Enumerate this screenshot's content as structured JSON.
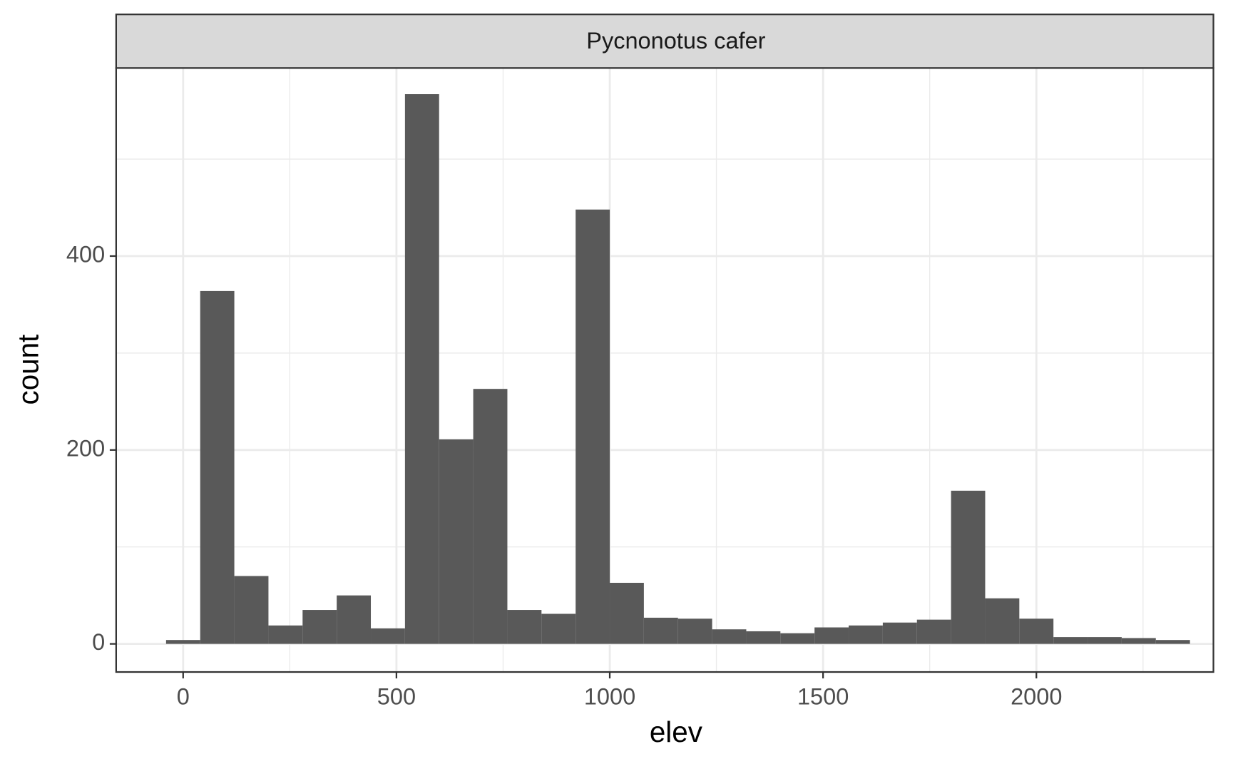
{
  "chart_data": {
    "type": "histogram",
    "title": "Pycnonotus cafer",
    "x_label": "elev",
    "y_label": "count",
    "bins": [
      -40,
      40,
      120,
      200,
      280,
      360,
      440,
      520,
      600,
      680,
      760,
      840,
      920,
      1000,
      1080,
      1160,
      1240,
      1320,
      1400,
      1480,
      1560,
      1640,
      1720,
      1800,
      1880,
      1960,
      2040,
      2120,
      2200,
      2280,
      2360
    ],
    "values": [
      4,
      364,
      70,
      19,
      35,
      50,
      16,
      567,
      211,
      263,
      35,
      31,
      448,
      63,
      27,
      26,
      15,
      13,
      11,
      17,
      19,
      22,
      25,
      158,
      47,
      26,
      7,
      7,
      6,
      4
    ],
    "color": "#595959",
    "xlim": [
      -157,
      2415
    ],
    "ylim": [
      -29,
      594
    ],
    "xticks": [
      0,
      500,
      1000,
      1500,
      2000
    ],
    "yticks": [
      0,
      200,
      400
    ],
    "xminor": [
      250,
      750,
      1250,
      1750,
      2250
    ],
    "yminor": [
      100,
      300,
      500
    ],
    "grid": true
  }
}
